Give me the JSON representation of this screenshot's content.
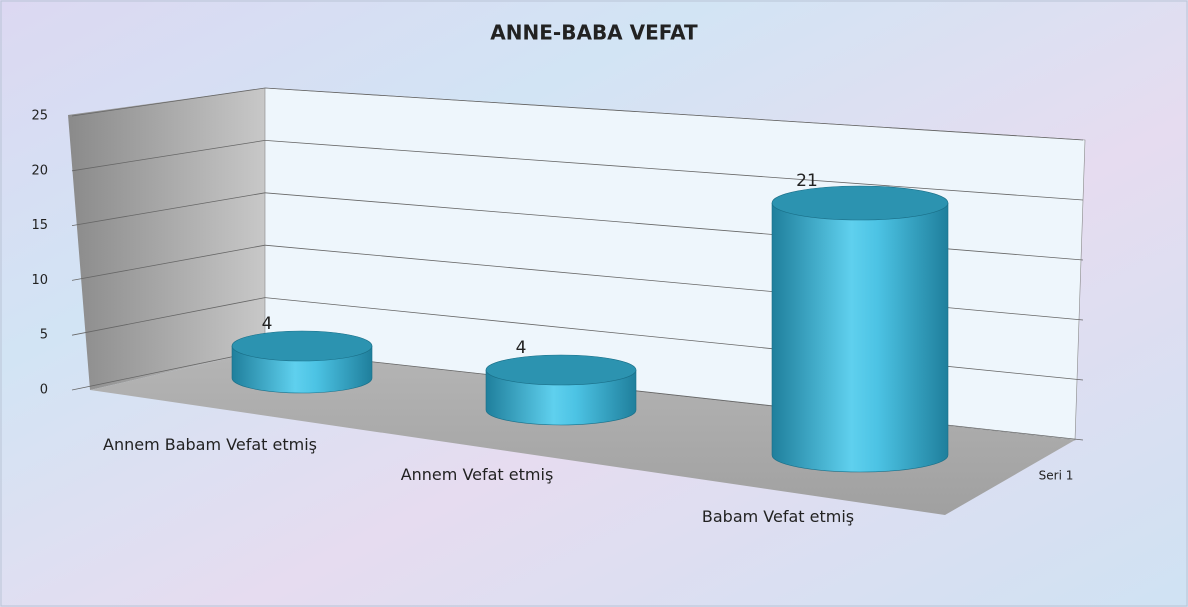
{
  "chart_data": {
    "type": "bar3d-cylinder",
    "title": "ANNE-BABA VEFAT",
    "categories": [
      "Annem Babam Vefat etmiş",
      "Annem Vefat etmiş",
      "Babam Vefat etmiş"
    ],
    "series": [
      {
        "name": "Seri 1",
        "color": "#3fb6d6",
        "values": [
          4,
          4,
          21
        ]
      }
    ],
    "ylim": [
      0,
      25
    ],
    "yticks": [
      0,
      5,
      10,
      15,
      20,
      25
    ],
    "grid": true,
    "legend": "right"
  }
}
